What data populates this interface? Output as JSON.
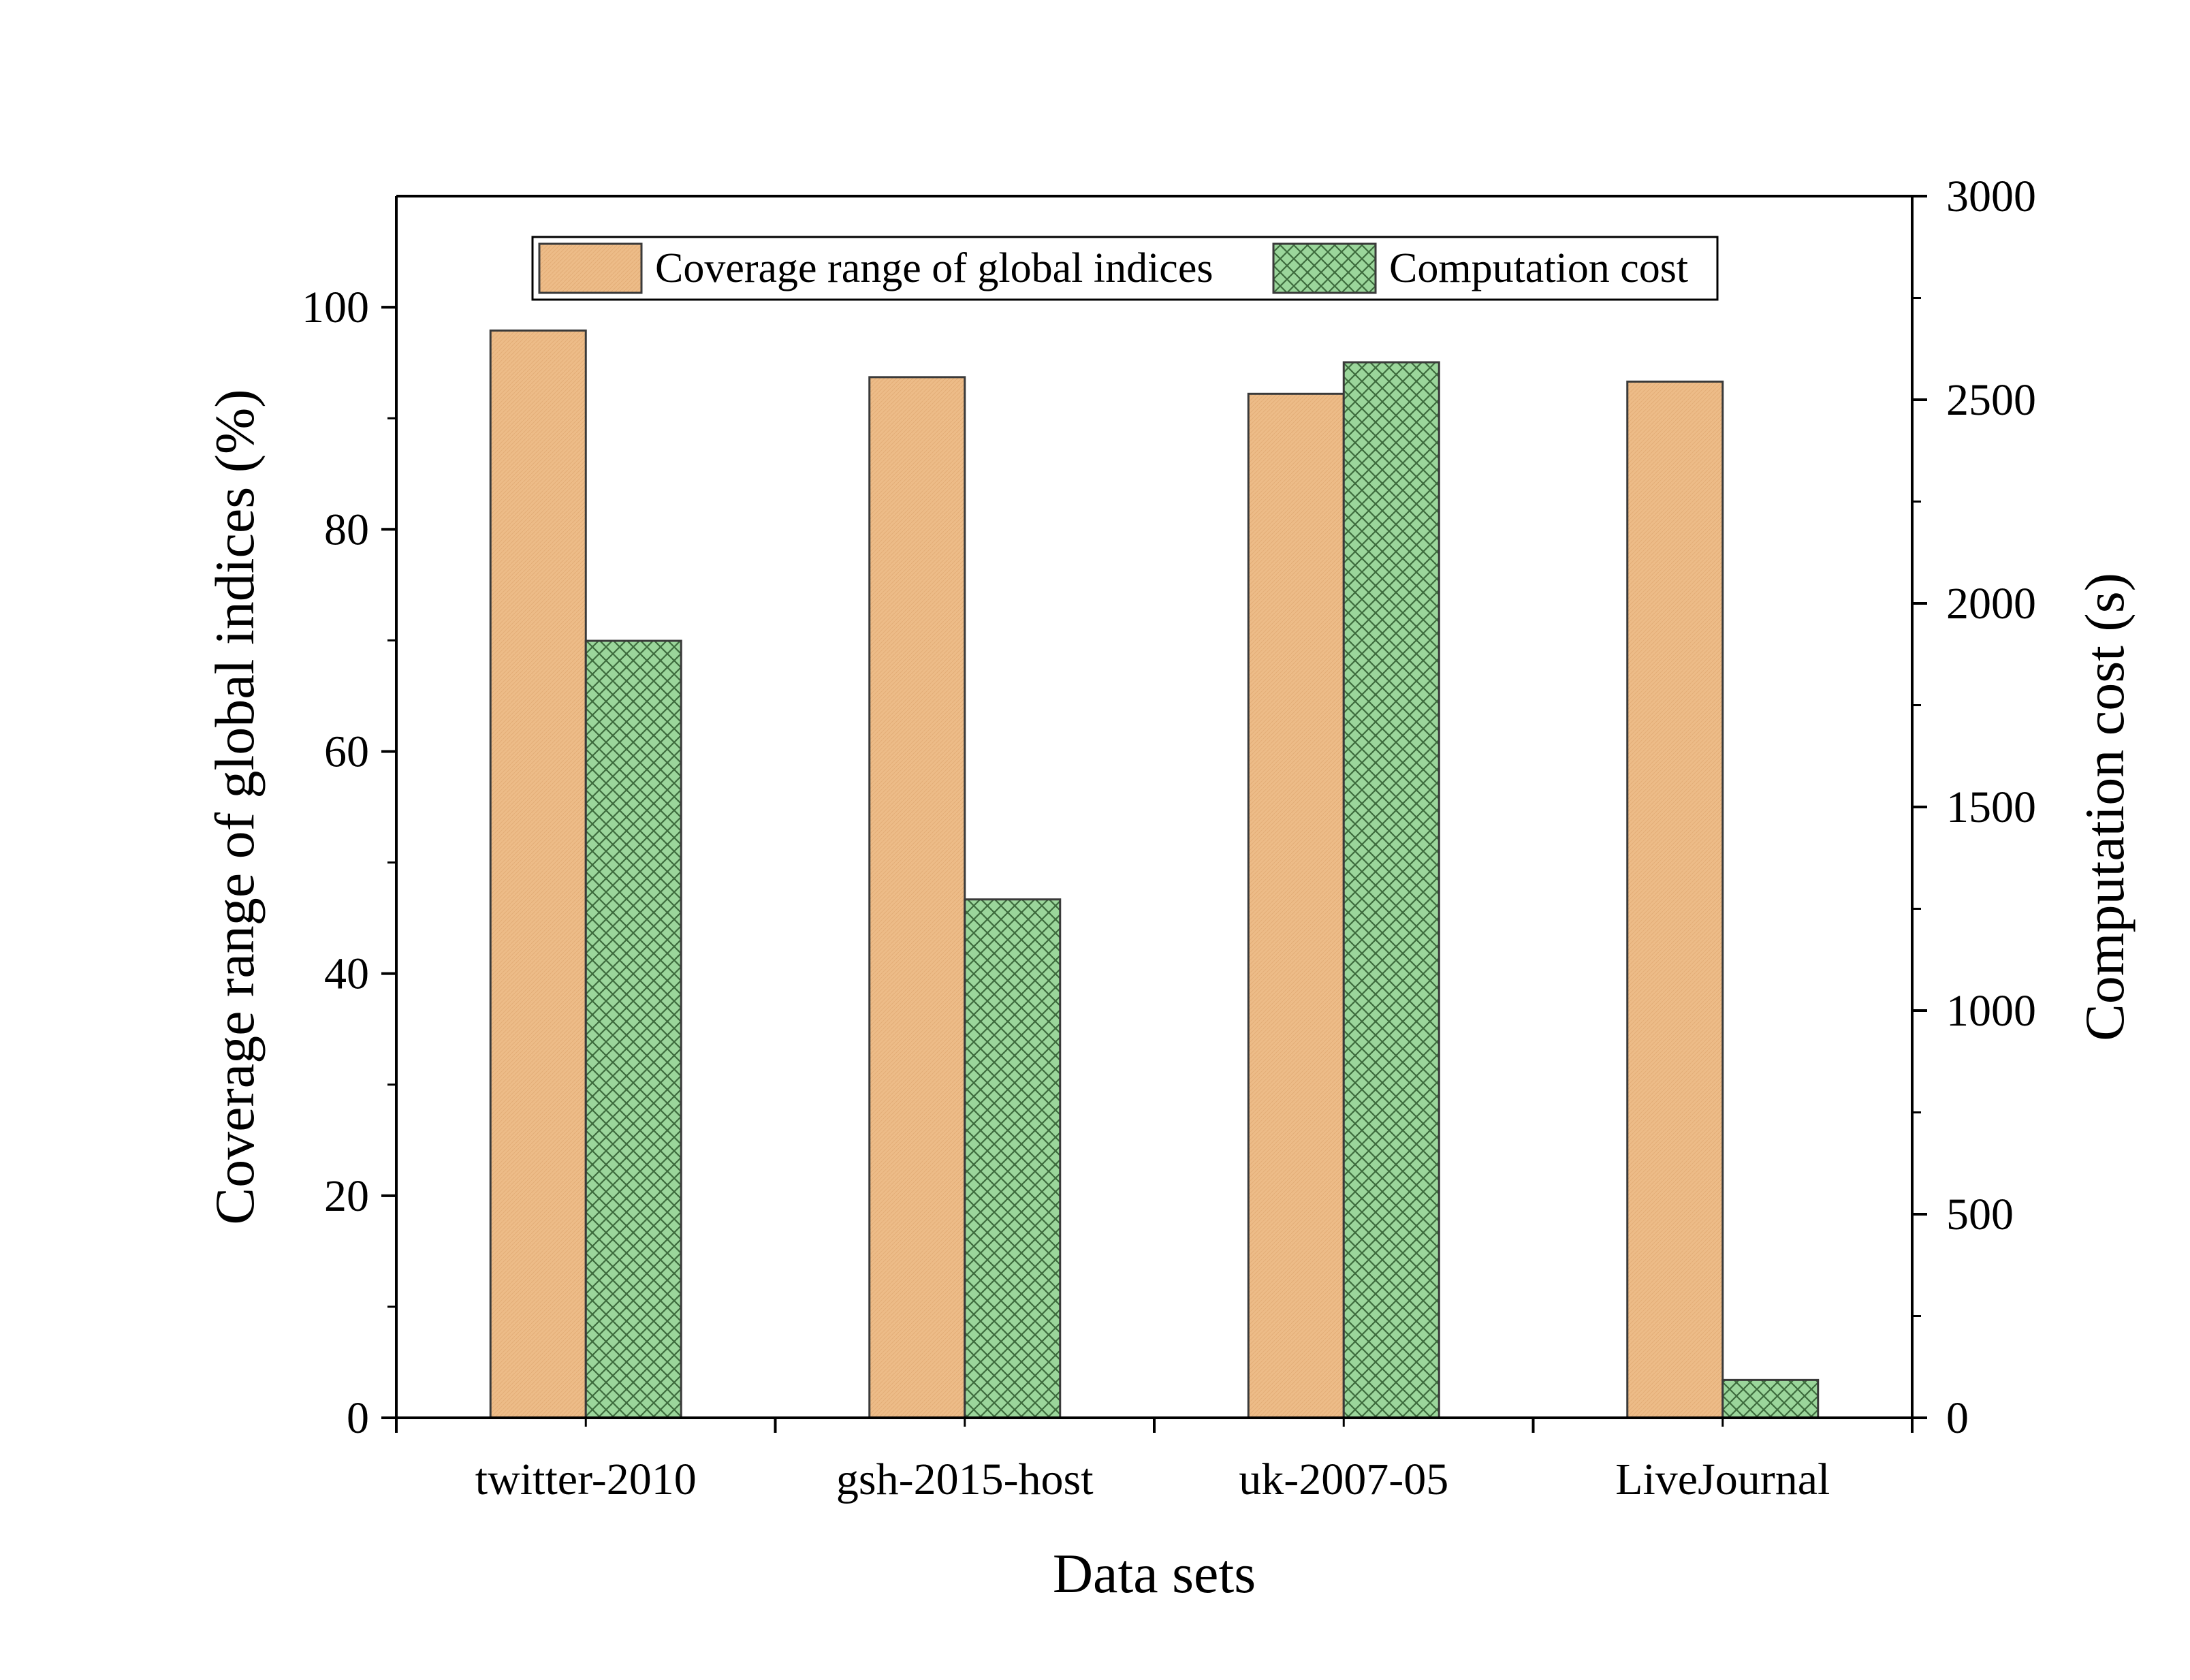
{
  "chart_data": {
    "type": "bar",
    "categories": [
      "twitter-2010",
      "gsh-2015-host",
      "uk-2007-05",
      "LiveJournal"
    ],
    "series": [
      {
        "name": "Coverage range of global indices",
        "axis": "left",
        "values": [
          97.9,
          93.7,
          92.2,
          93.3
        ],
        "color": "#EDBC88",
        "pattern": "none"
      },
      {
        "name": "Computation cost",
        "axis": "right",
        "values": [
          1908,
          1273,
          2592,
          93
        ],
        "color": "#9BD69B",
        "pattern": "crosshatch"
      }
    ],
    "xlabel": "Data sets",
    "ylabel": "Coverage range of global indices (%)",
    "y2label": "Computation cost (s)",
    "ylim": [
      0,
      110
    ],
    "yticks": [
      0,
      20,
      40,
      60,
      80,
      100
    ],
    "y2lim": [
      0,
      3000
    ],
    "y2ticks": [
      0,
      500,
      1000,
      1500,
      2000,
      2500,
      3000
    ],
    "grid": false,
    "legend_position": "top-center"
  }
}
